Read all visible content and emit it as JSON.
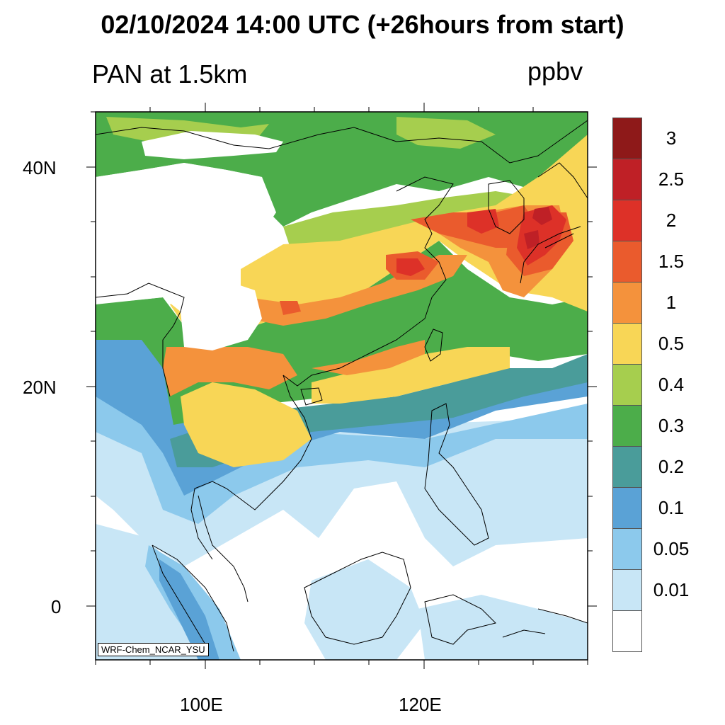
{
  "title": "02/10/2024 14:00 UTC (+26hours from start)",
  "subtitle": "PAN at 1.5km",
  "units": "ppbv",
  "watermark": "WRF-Chem_NCAR_YSU",
  "map": {
    "lon_range": [
      90,
      135
    ],
    "lat_range": [
      -5,
      45
    ],
    "lat_ticks": [
      "40N",
      "20N",
      "0"
    ],
    "lon_ticks": [
      "100E",
      "120E"
    ]
  },
  "legend": {
    "labels": [
      "3",
      "2.5",
      "2",
      "1.5",
      "1",
      "0.5",
      "0.4",
      "0.3",
      "0.2",
      "0.1",
      "0.05",
      "0.01"
    ],
    "colors": [
      "#8e1919",
      "#bf2026",
      "#dd3128",
      "#ea5b2d",
      "#f4923c",
      "#f8d656",
      "#a6ce4e",
      "#4cad4a",
      "#4a9c9a",
      "#5aa2d6",
      "#8cc9ec",
      "#c8e6f6",
      "#ffffff"
    ]
  },
  "palette": {
    "ocean_white": "#ffffff",
    "very_light_blue": "#c8e6f6",
    "light_blue": "#8cc9ec",
    "blue": "#5aa2d6",
    "teal": "#4a9c9a",
    "green": "#4cad4a",
    "light_green": "#a6ce4e",
    "yellow": "#f8d656",
    "orange": "#f4923c",
    "dark_orange": "#ea5b2d",
    "red": "#dd3128",
    "dark_red": "#bf2026"
  }
}
